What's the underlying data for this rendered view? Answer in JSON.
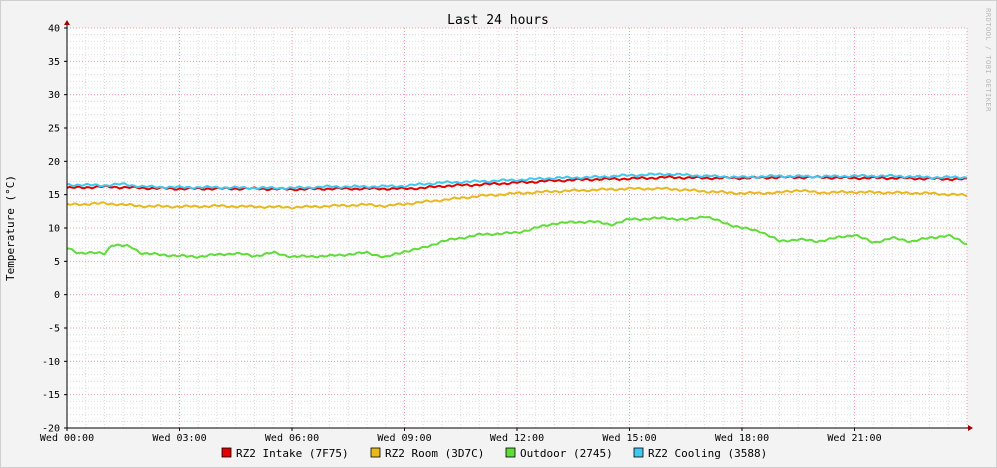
{
  "chart_data": {
    "type": "line",
    "title": "Last 24 hours",
    "ylabel": "Temperature (°C)",
    "xlabel": "",
    "watermark": "RRDTOOL / TOBI OETIKER",
    "ylim": [
      -20,
      40
    ],
    "yticks": [
      -20,
      -15,
      -10,
      -5,
      0,
      5,
      10,
      15,
      20,
      25,
      30,
      35,
      40
    ],
    "xlim": [
      0,
      24
    ],
    "xticks": [
      {
        "h": 0,
        "label": "Wed 00:00"
      },
      {
        "h": 3,
        "label": "Wed 03:00"
      },
      {
        "h": 6,
        "label": "Wed 06:00"
      },
      {
        "h": 9,
        "label": "Wed 09:00"
      },
      {
        "h": 12,
        "label": "Wed 12:00"
      },
      {
        "h": 15,
        "label": "Wed 15:00"
      },
      {
        "h": 18,
        "label": "Wed 18:00"
      },
      {
        "h": 21,
        "label": "Wed 21:00"
      }
    ],
    "grid": true,
    "legend_position": "bottom",
    "series": [
      {
        "name": "RZ2 Intake (7F75)",
        "color": "#e00000",
        "points": [
          [
            0,
            16.0
          ],
          [
            1,
            16.2
          ],
          [
            1.5,
            16.1
          ],
          [
            2,
            16.0
          ],
          [
            3,
            15.9
          ],
          [
            4,
            15.9
          ],
          [
            5,
            15.9
          ],
          [
            6,
            15.8
          ],
          [
            7,
            15.9
          ],
          [
            8,
            15.9
          ],
          [
            9,
            15.9
          ],
          [
            9.5,
            16.0
          ],
          [
            10,
            16.3
          ],
          [
            11,
            16.5
          ],
          [
            12,
            16.8
          ],
          [
            13,
            17.1
          ],
          [
            14,
            17.3
          ],
          [
            15,
            17.4
          ],
          [
            16,
            17.6
          ],
          [
            17,
            17.5
          ],
          [
            18,
            17.5
          ],
          [
            19,
            17.6
          ],
          [
            20,
            17.6
          ],
          [
            21,
            17.5
          ],
          [
            22,
            17.5
          ],
          [
            23,
            17.4
          ],
          [
            24,
            17.3
          ]
        ]
      },
      {
        "name": "RZ2 Room (3D7C)",
        "color": "#e8b820",
        "points": [
          [
            0,
            13.5
          ],
          [
            1,
            13.7
          ],
          [
            1.5,
            13.5
          ],
          [
            2,
            13.3
          ],
          [
            3,
            13.2
          ],
          [
            4,
            13.3
          ],
          [
            5,
            13.2
          ],
          [
            6,
            13.1
          ],
          [
            7,
            13.3
          ],
          [
            8,
            13.5
          ],
          [
            8.5,
            13.3
          ],
          [
            9,
            13.6
          ],
          [
            10,
            14.2
          ],
          [
            11,
            14.8
          ],
          [
            12,
            15.2
          ],
          [
            13,
            15.5
          ],
          [
            14,
            15.7
          ],
          [
            15,
            15.9
          ],
          [
            16,
            15.9
          ],
          [
            17,
            15.5
          ],
          [
            18,
            15.2
          ],
          [
            19,
            15.3
          ],
          [
            19.5,
            15.7
          ],
          [
            20,
            15.3
          ],
          [
            21,
            15.4
          ],
          [
            22,
            15.3
          ],
          [
            23,
            15.2
          ],
          [
            24,
            14.9
          ]
        ]
      },
      {
        "name": "Outdoor (2745)",
        "color": "#5fdc3a",
        "points": [
          [
            0,
            7.0
          ],
          [
            0.3,
            6.3
          ],
          [
            1,
            6.2
          ],
          [
            1.2,
            7.5
          ],
          [
            1.7,
            7.2
          ],
          [
            2,
            6.2
          ],
          [
            3,
            5.8
          ],
          [
            3.5,
            5.7
          ],
          [
            4,
            6.0
          ],
          [
            4.5,
            6.2
          ],
          [
            5,
            5.8
          ],
          [
            5.5,
            6.3
          ],
          [
            6,
            5.7
          ],
          [
            7,
            5.8
          ],
          [
            8,
            6.3
          ],
          [
            8.5,
            5.6
          ],
          [
            9,
            6.5
          ],
          [
            9.5,
            7.0
          ],
          [
            10,
            8.0
          ],
          [
            10.5,
            8.5
          ],
          [
            11,
            9.0
          ],
          [
            12,
            9.3
          ],
          [
            12.5,
            10.0
          ],
          [
            13,
            10.7
          ],
          [
            14,
            11.0
          ],
          [
            14.5,
            10.5
          ],
          [
            15,
            11.3
          ],
          [
            16,
            11.5
          ],
          [
            16.5,
            11.2
          ],
          [
            17,
            11.8
          ],
          [
            17.5,
            10.8
          ],
          [
            18,
            10.0
          ],
          [
            18.5,
            9.5
          ],
          [
            19,
            8.0
          ],
          [
            19.5,
            8.3
          ],
          [
            20,
            8.0
          ],
          [
            21,
            9.0
          ],
          [
            21.5,
            7.8
          ],
          [
            22,
            8.5
          ],
          [
            22.5,
            8.0
          ],
          [
            23,
            8.5
          ],
          [
            23.5,
            8.9
          ],
          [
            24,
            7.6
          ]
        ]
      },
      {
        "name": "RZ2 Cooling (3588)",
        "color": "#40c8f0",
        "points": [
          [
            0,
            16.5
          ],
          [
            1,
            16.4
          ],
          [
            1.5,
            16.6
          ],
          [
            2,
            16.2
          ],
          [
            3,
            16.1
          ],
          [
            4,
            16.1
          ],
          [
            5,
            16.0
          ],
          [
            6,
            16.0
          ],
          [
            7,
            16.2
          ],
          [
            8,
            16.2
          ],
          [
            9,
            16.3
          ],
          [
            9.5,
            16.6
          ],
          [
            10,
            16.8
          ],
          [
            11,
            17.0
          ],
          [
            12,
            17.2
          ],
          [
            13,
            17.5
          ],
          [
            14,
            17.6
          ],
          [
            15,
            17.9
          ],
          [
            16,
            18.1
          ],
          [
            17,
            17.8
          ],
          [
            18,
            17.6
          ],
          [
            19,
            17.8
          ],
          [
            20,
            17.7
          ],
          [
            21,
            17.8
          ],
          [
            22,
            17.8
          ],
          [
            23,
            17.6
          ],
          [
            24,
            17.6
          ]
        ]
      }
    ]
  }
}
